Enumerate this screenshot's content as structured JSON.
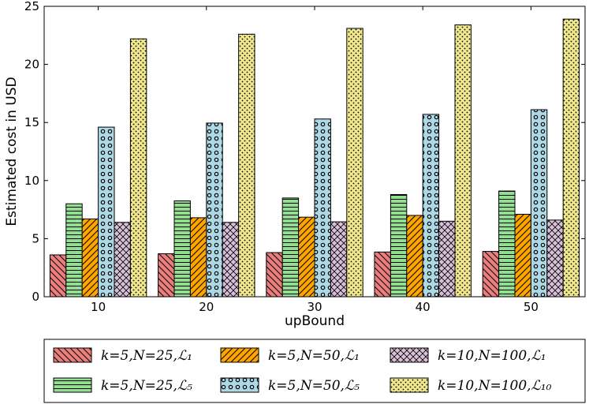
{
  "chart_data": {
    "type": "bar",
    "title": "",
    "xlabel": "upBound",
    "ylabel": "Estimated cost in USD",
    "ylim": [
      0,
      25
    ],
    "yticks": [
      0,
      5,
      10,
      15,
      20,
      25
    ],
    "categories": [
      "10",
      "20",
      "30",
      "40",
      "50"
    ],
    "series": [
      {
        "name": "k=5,N=25,L1",
        "label": "k=5,N=25,ℒ₁",
        "color": "#ec7d7d",
        "pattern": "pat-diag-back",
        "values": [
          3.6,
          3.7,
          3.8,
          3.85,
          3.9
        ]
      },
      {
        "name": "k=5,N=25,L5",
        "label": "k=5,N=25,ℒ₅",
        "color": "#90e090",
        "pattern": "pat-horiz",
        "values": [
          8.0,
          8.25,
          8.5,
          8.8,
          9.1
        ]
      },
      {
        "name": "k=5,N=50,L1",
        "label": "k=5,N=50,ℒ₁",
        "color": "#ffa500",
        "pattern": "pat-diag-fwd",
        "values": [
          6.7,
          6.8,
          6.85,
          7.0,
          7.1
        ]
      },
      {
        "name": "k=5,N=50,L5",
        "label": "k=5,N=50,ℒ₅",
        "color": "#add8e6",
        "pattern": "pat-circle",
        "values": [
          14.6,
          14.95,
          15.3,
          15.7,
          16.1
        ]
      },
      {
        "name": "k=10,N=100,L1",
        "label": "k=10,N=100,ℒ₁",
        "color": "#d8bfd8",
        "pattern": "pat-cross",
        "values": [
          6.4,
          6.4,
          6.45,
          6.5,
          6.6
        ]
      },
      {
        "name": "k=10,N=100,L10",
        "label": "k=10,N=100,ℒ₁₀",
        "color": "#f0e68c",
        "pattern": "pat-dots",
        "values": [
          22.2,
          22.6,
          23.1,
          23.4,
          23.9
        ]
      }
    ],
    "legend_position": "bottom"
  }
}
